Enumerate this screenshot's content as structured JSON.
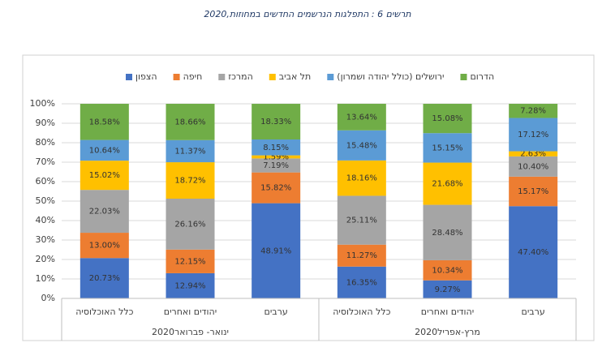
{
  "chart_data": {
    "type": "stacked_bar",
    "title": "תרשים 6 : התפלגות הנרשמים החדשים במחוזות,2020",
    "categories": [
      "כלל האוכלוסיה",
      "יהודים ואחרים",
      "ערבים",
      "כלל האוכלוסיה",
      "יהודים ואחרים",
      "ערבים"
    ],
    "groups": [
      {
        "label": "ינואר- פברואר2020",
        "span": [
          0,
          2
        ]
      },
      {
        "label": "מרץ-אפריל2020",
        "span": [
          3,
          5
        ]
      }
    ],
    "series": [
      {
        "name": "הצפון",
        "color": "#4472c4",
        "values": [
          20.73,
          12.94,
          48.91,
          16.35,
          9.27,
          47.4
        ],
        "value_labels": [
          "20.73%",
          "12.94%",
          "48.91%",
          "16.35%",
          "9.27%",
          "47.40%"
        ]
      },
      {
        "name": "חיפה",
        "color": "#ed7d31",
        "values": [
          13.0,
          12.15,
          15.82,
          11.27,
          10.34,
          15.17
        ],
        "value_labels": [
          "13.00%",
          "12.15%",
          "15.82%",
          "11.27%",
          "10.34%",
          "15.17%"
        ]
      },
      {
        "name": "המרכז",
        "color": "#a5a5a5",
        "values": [
          22.03,
          26.16,
          7.19,
          25.11,
          28.48,
          10.4
        ],
        "value_labels": [
          "22.03%",
          "26.16%",
          "7.19%",
          "25.11%",
          "28.48%",
          "10.40%"
        ]
      },
      {
        "name": "תל אביב",
        "color": "#ffc000",
        "values": [
          15.02,
          18.72,
          1.59,
          18.16,
          21.68,
          2.63
        ],
        "value_labels": [
          "15.02%",
          "18.72%",
          "1.59%",
          "18.16%",
          "21.68%",
          "2.63%"
        ]
      },
      {
        "name": "ירושלים (כולל יהודה ושמרון)",
        "color": "#5b9bd5",
        "values": [
          10.64,
          11.37,
          8.15,
          15.48,
          15.15,
          17.12
        ],
        "value_labels": [
          "10.64%",
          "11.37%",
          "8.15%",
          "15.48%",
          "15.15%",
          "17.12%"
        ]
      },
      {
        "name": "הדרום",
        "color": "#70ad47",
        "values": [
          18.58,
          18.66,
          18.33,
          13.64,
          15.08,
          7.28
        ],
        "value_labels": [
          "18.58%",
          "18.66%",
          "18.33%",
          "13.64%",
          "15.08%",
          "7.28%"
        ]
      }
    ],
    "ylim": [
      0,
      100
    ],
    "yticks": [
      {
        "value": 0,
        "label": "0%"
      },
      {
        "value": 10,
        "label": "10%"
      },
      {
        "value": 20,
        "label": "20%"
      },
      {
        "value": 30,
        "label": "30%"
      },
      {
        "value": 40,
        "label": "40%"
      },
      {
        "value": 50,
        "label": "50%"
      },
      {
        "value": 60,
        "label": "60%"
      },
      {
        "value": 70,
        "label": "70%"
      },
      {
        "value": 80,
        "label": "80%"
      },
      {
        "value": 90,
        "label": "90%"
      },
      {
        "value": 100,
        "label": "100%"
      }
    ],
    "grid": true
  }
}
